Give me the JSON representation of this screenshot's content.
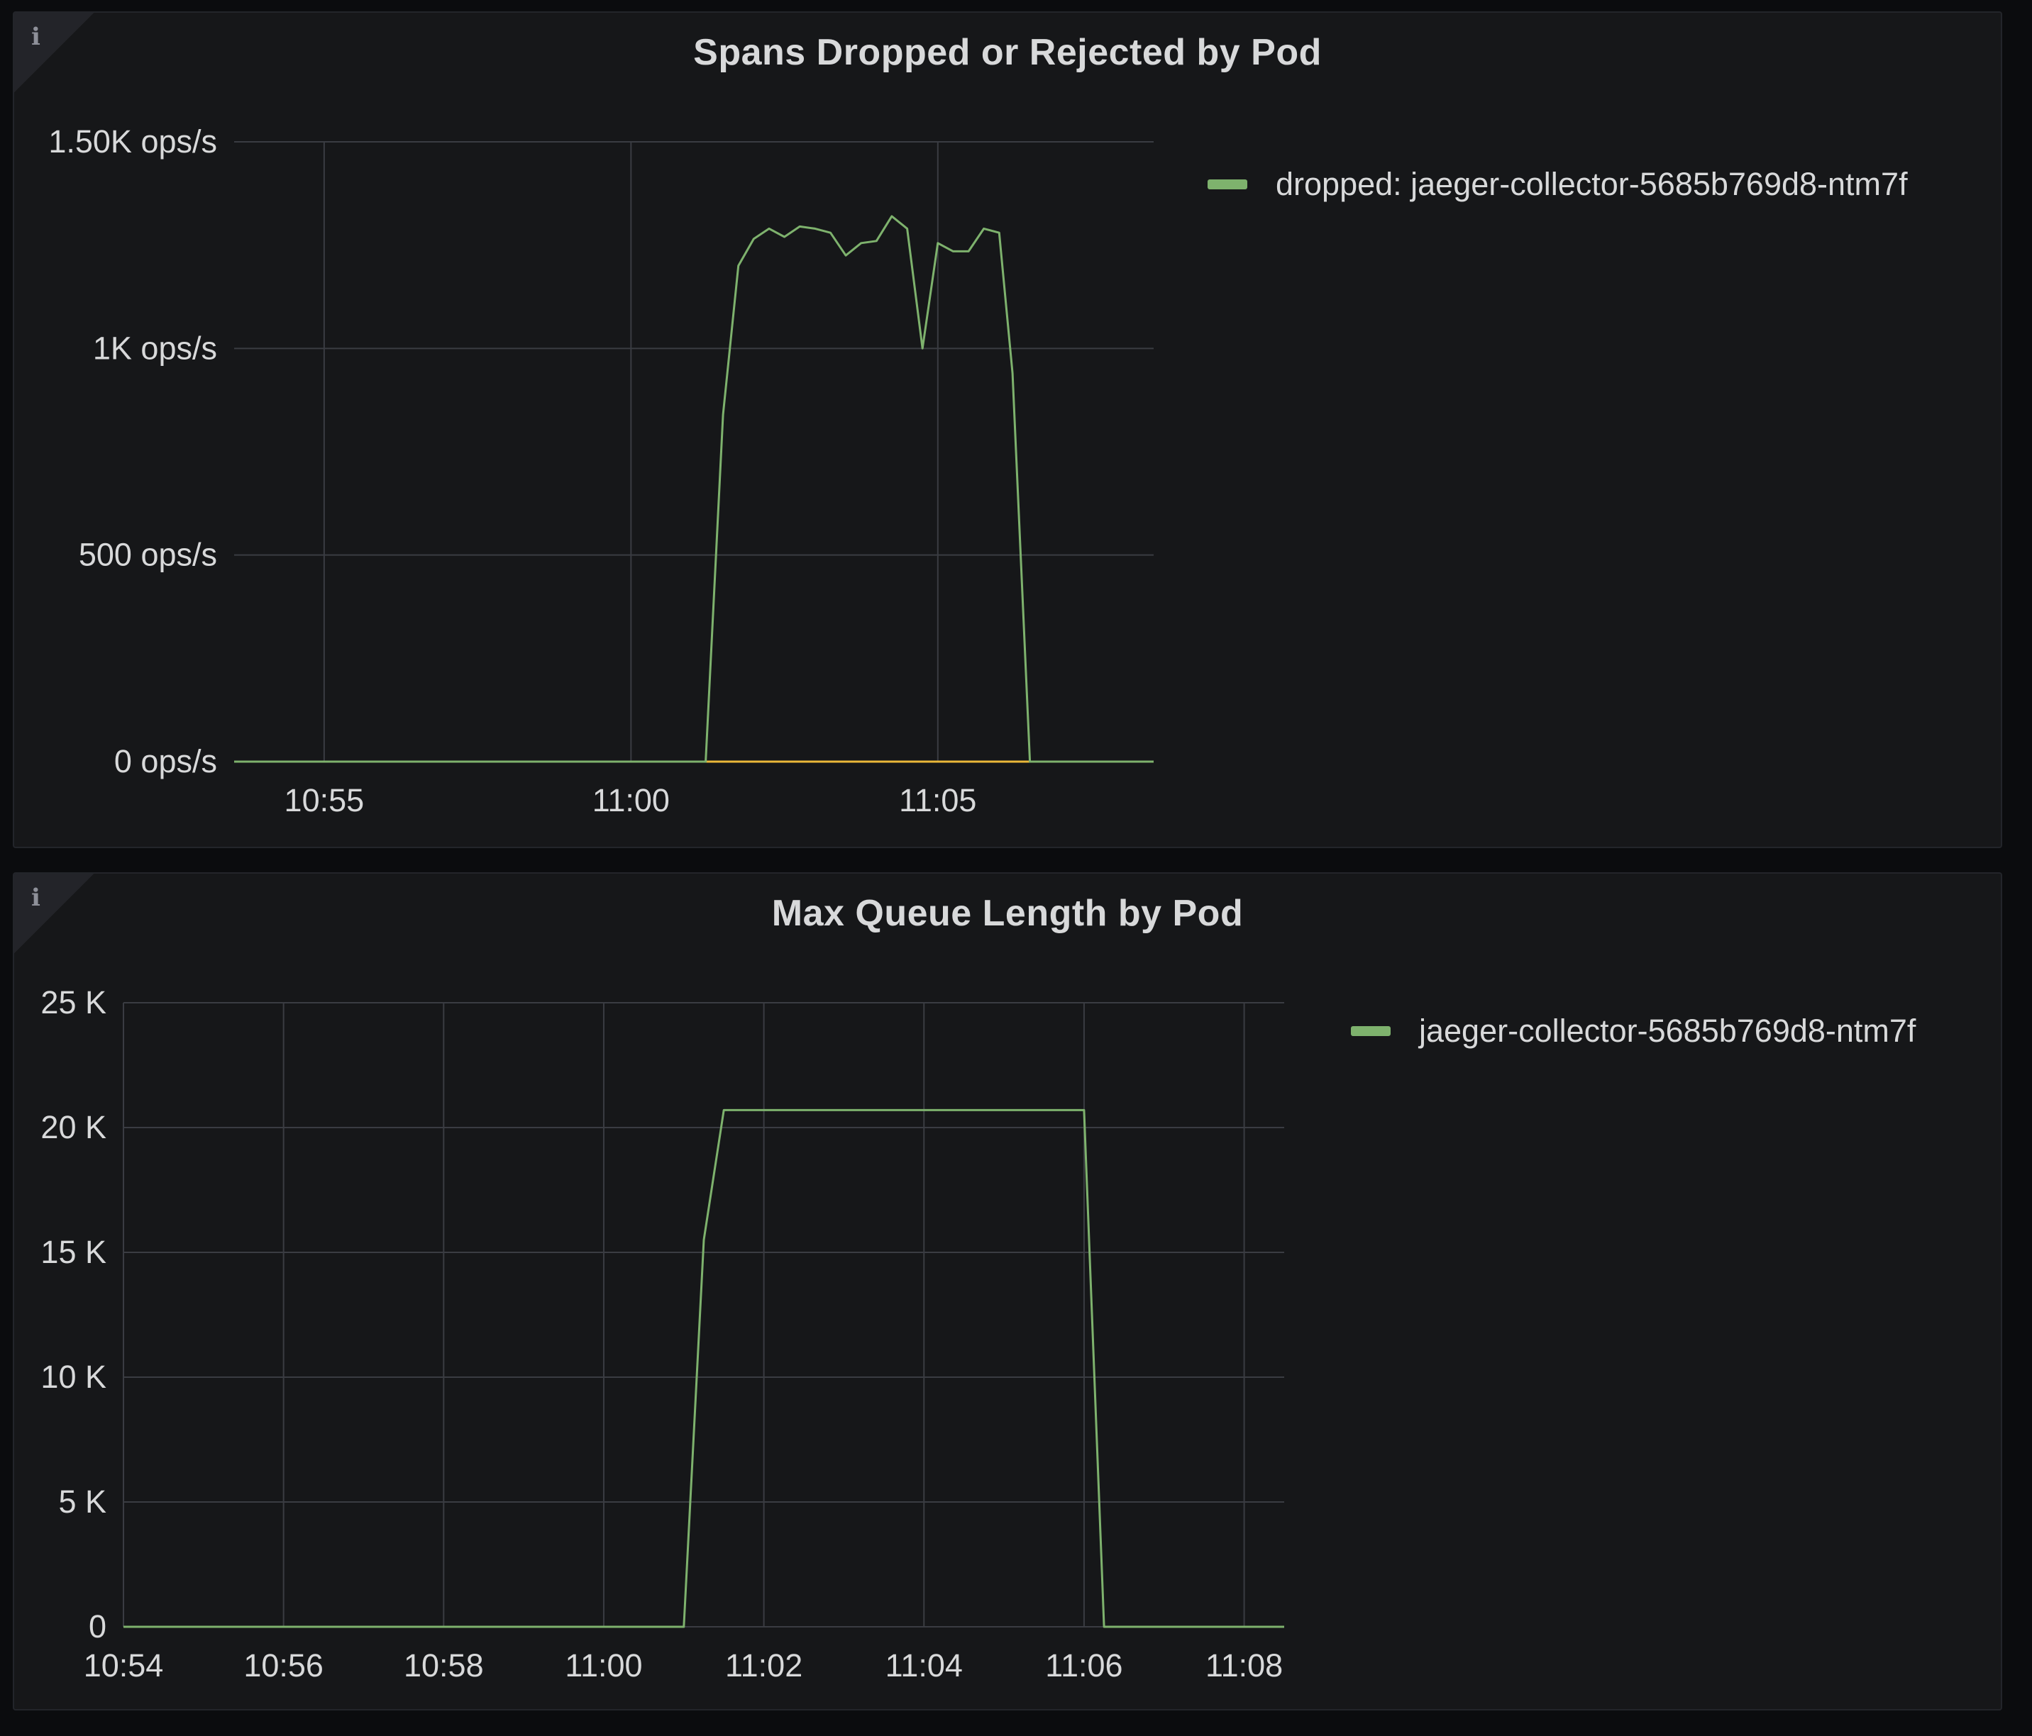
{
  "panels": [
    {
      "title": "Spans Dropped or Rejected by Pod",
      "info_icon": "info-icon",
      "legend": [
        {
          "label": "dropped: jaeger-collector-5685b769d8-ntm7f",
          "color": "#7eb26d"
        }
      ]
    },
    {
      "title": "Max Queue Length by Pod",
      "info_icon": "info-icon",
      "legend": [
        {
          "label": "jaeger-collector-5685b769d8-ntm7f",
          "color": "#7eb26d"
        }
      ]
    }
  ],
  "chart_data": [
    {
      "type": "line",
      "title": "Spans Dropped or Rejected by Pod",
      "xlabel": "",
      "ylabel": "",
      "x_range": [
        "10:53:32",
        "11:08:31"
      ],
      "ylim": [
        0,
        1500
      ],
      "y_ticks": [
        {
          "value": 0,
          "label": "0 ops/s"
        },
        {
          "value": 500,
          "label": "500 ops/s"
        },
        {
          "value": 1000,
          "label": "1K ops/s"
        },
        {
          "value": 1500,
          "label": "1.50K ops/s"
        }
      ],
      "x_ticks": [
        {
          "value": "10:55",
          "label": "10:55"
        },
        {
          "value": "11:00",
          "label": "11:00"
        },
        {
          "value": "11:05",
          "label": "11:05"
        }
      ],
      "grid": true,
      "legend_position": "right",
      "series": [
        {
          "name": "dropped: jaeger-collector-5685b769d8-ntm7f",
          "color": "#7eb26d",
          "points": [
            [
              "10:53:32",
              0
            ],
            [
              "11:01:13",
              0
            ],
            [
              "11:01:30",
              840
            ],
            [
              "11:01:45",
              1200
            ],
            [
              "11:02:00",
              1265
            ],
            [
              "11:02:15",
              1290
            ],
            [
              "11:02:30",
              1270
            ],
            [
              "11:02:45",
              1295
            ],
            [
              "11:03:00",
              1290
            ],
            [
              "11:03:15",
              1280
            ],
            [
              "11:03:30",
              1225
            ],
            [
              "11:03:45",
              1255
            ],
            [
              "11:04:00",
              1260
            ],
            [
              "11:04:15",
              1320
            ],
            [
              "11:04:30",
              1290
            ],
            [
              "11:04:45",
              1000
            ],
            [
              "11:05:00",
              1255
            ],
            [
              "11:05:15",
              1235
            ],
            [
              "11:05:30",
              1235
            ],
            [
              "11:05:45",
              1290
            ],
            [
              "11:06:00",
              1280
            ],
            [
              "11:06:13",
              940
            ],
            [
              "11:06:30",
              0
            ],
            [
              "11:08:31",
              0
            ]
          ]
        },
        {
          "color": "#eab839",
          "points": [
            [
              "10:53:32",
              0
            ],
            [
              "11:08:31",
              0
            ]
          ]
        }
      ]
    },
    {
      "type": "line",
      "title": "Max Queue Length by Pod",
      "xlabel": "",
      "ylabel": "",
      "x_range": [
        "10:54:00",
        "11:08:30"
      ],
      "ylim": [
        0,
        25000
      ],
      "y_ticks": [
        {
          "value": 0,
          "label": "0"
        },
        {
          "value": 5000,
          "label": "5 K"
        },
        {
          "value": 10000,
          "label": "10 K"
        },
        {
          "value": 15000,
          "label": "15 K"
        },
        {
          "value": 20000,
          "label": "20 K"
        },
        {
          "value": 25000,
          "label": "25 K"
        }
      ],
      "x_ticks": [
        {
          "value": "10:54",
          "label": "10:54"
        },
        {
          "value": "10:56",
          "label": "10:56"
        },
        {
          "value": "10:58",
          "label": "10:58"
        },
        {
          "value": "11:00",
          "label": "11:00"
        },
        {
          "value": "11:02",
          "label": "11:02"
        },
        {
          "value": "11:04",
          "label": "11:04"
        },
        {
          "value": "11:06",
          "label": "11:06"
        },
        {
          "value": "11:08",
          "label": "11:08"
        }
      ],
      "grid": true,
      "legend_position": "right",
      "series": [
        {
          "name": "jaeger-collector-5685b769d8-ntm7f",
          "color": "#7eb26d",
          "points": [
            [
              "10:54:00",
              0
            ],
            [
              "11:01:00",
              0
            ],
            [
              "11:01:15",
              15500
            ],
            [
              "11:01:30",
              20700
            ],
            [
              "11:06:00",
              20700
            ],
            [
              "11:06:15",
              0
            ],
            [
              "11:08:30",
              0
            ]
          ]
        }
      ]
    }
  ]
}
